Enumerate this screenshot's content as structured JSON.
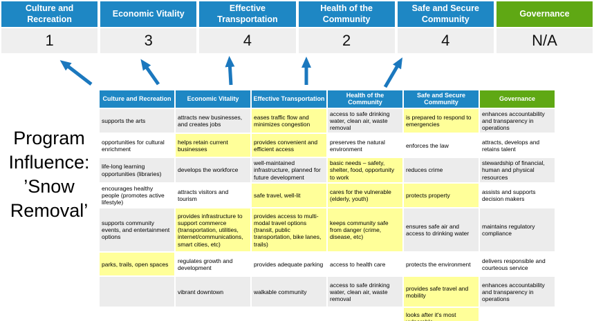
{
  "slide": {
    "title": "Program Influence: ’Snow Removal’"
  },
  "colors": {
    "pillar_blue": "#1E87C4",
    "governance_green": "#5FA814",
    "highlight_yellow": "#FFFF99",
    "band_gray": "#ECECEC",
    "score_row_gray": "#EFEFEF",
    "arrow_blue": "#1B78BE"
  },
  "scoreboard": {
    "columns": [
      {
        "label": "Culture and Recreation",
        "score": "1"
      },
      {
        "label": "Economic Vitality",
        "score": "3"
      },
      {
        "label": "Effective Transportation",
        "score": "4"
      },
      {
        "label": "Health of the Community",
        "score": "2"
      },
      {
        "label": "Safe and Secure Community",
        "score": "4"
      },
      {
        "label": "Governance",
        "score": "N/A"
      }
    ]
  },
  "matrix": {
    "headers": [
      "Culture and Recreation",
      "Economic Vitality",
      "Effective Transportation",
      "Health of the Community",
      "Safe and Secure Community",
      "Governance"
    ],
    "rows": [
      [
        {
          "text": "supports the arts",
          "highlight": false
        },
        {
          "text": "attracts new businesses, and creates jobs",
          "highlight": false
        },
        {
          "text": "eases traffic flow and minimizes congestion",
          "highlight": true
        },
        {
          "text": "access to safe drinking water, clean air, waste removal",
          "highlight": false
        },
        {
          "text": "is prepared to respond to emergencies",
          "highlight": true
        },
        {
          "text": "enhances accountability and transparency in operations",
          "highlight": false
        }
      ],
      [
        {
          "text": "opportunities for cultural enrichment",
          "highlight": false
        },
        {
          "text": "helps retain current businesses",
          "highlight": true
        },
        {
          "text": "provides convenient and efficient access",
          "highlight": true
        },
        {
          "text": "preserves the natural environment",
          "highlight": false
        },
        {
          "text": "enforces the law",
          "highlight": false
        },
        {
          "text": "attracts, develops and retains talent",
          "highlight": false
        }
      ],
      [
        {
          "text": "life-long learning opportunities (libraries)",
          "highlight": false
        },
        {
          "text": "develops the workforce",
          "highlight": false
        },
        {
          "text": "well-maintained infrastructure, planned for future development",
          "highlight": false
        },
        {
          "text": "basic needs – safety, shelter, food, opportunity to work",
          "highlight": true
        },
        {
          "text": "reduces crime",
          "highlight": false
        },
        {
          "text": "stewardship of financial, human and physical resources",
          "highlight": false
        }
      ],
      [
        {
          "text": "encourages healthy people (promotes active lifestyle)",
          "highlight": false
        },
        {
          "text": "attracts visitors and tourism",
          "highlight": false
        },
        {
          "text": "safe travel, well-lit",
          "highlight": true
        },
        {
          "text": "cares for the vulnerable (elderly, youth)",
          "highlight": true
        },
        {
          "text": "protects property",
          "highlight": true
        },
        {
          "text": "assists and supports decision makers",
          "highlight": false
        }
      ],
      [
        {
          "text": "supports community events, and entertainment options",
          "highlight": false
        },
        {
          "text": "provides infrastructure to support commerce (transportation, utilities, internet/communications, smart cities, etc)",
          "highlight": true
        },
        {
          "text": "provides access to multi-modal travel options (transit, public transportation, bike lanes, trails)",
          "highlight": true
        },
        {
          "text": "keeps community safe from danger (crime, disease, etc)",
          "highlight": true
        },
        {
          "text": "ensures safe air and access to drinking water",
          "highlight": false
        },
        {
          "text": "maintains regulatory compliance",
          "highlight": false
        }
      ],
      [
        {
          "text": "parks, trails, open spaces",
          "highlight": true
        },
        {
          "text": "regulates growth and development",
          "highlight": false
        },
        {
          "text": "provides adequate parking",
          "highlight": false
        },
        {
          "text": "access to health care",
          "highlight": false
        },
        {
          "text": "protects the environment",
          "highlight": false
        },
        {
          "text": "delivers responsible and courteous service",
          "highlight": false
        }
      ],
      [
        {
          "text": "",
          "highlight": false
        },
        {
          "text": "vibrant downtown",
          "highlight": false
        },
        {
          "text": "walkable community",
          "highlight": false
        },
        {
          "text": "access to safe drinking water, clean air, waste removal",
          "highlight": false
        },
        {
          "text": "provides safe travel and mobility",
          "highlight": true
        },
        {
          "text": "enhances accountability and transparency in operations",
          "highlight": false
        }
      ],
      [
        {
          "text": "",
          "highlight": false
        },
        {
          "text": "",
          "highlight": false
        },
        {
          "text": "",
          "highlight": false
        },
        {
          "text": "",
          "highlight": false
        },
        {
          "text": "looks after it's most vulnerable",
          "highlight": true
        },
        {
          "text": "",
          "highlight": false
        }
      ]
    ]
  }
}
